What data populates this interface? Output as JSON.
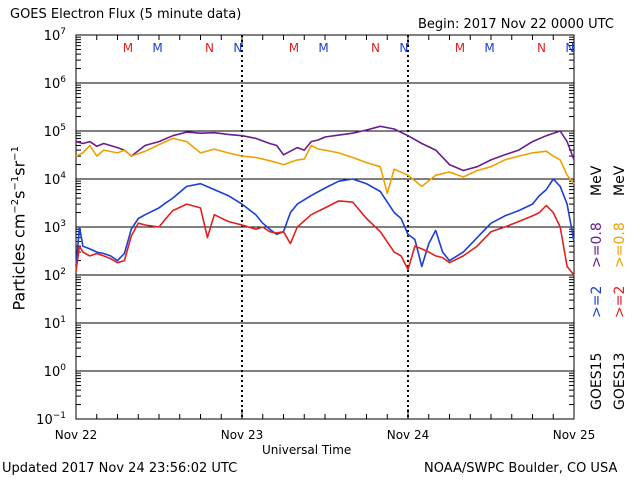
{
  "header": {
    "title": "GOES Electron Flux (5 minute data)",
    "begin": "Begin: 2017 Nov 22 0000 UTC"
  },
  "footer": {
    "updated": "Updated 2017 Nov 24 23:56:02 UTC",
    "credit": "NOAA/SWPC Boulder, CO USA"
  },
  "right_labels": {
    "goes15": "GOES15",
    "goes13": "GOES13",
    "goes15_ge2": ">=2",
    "goes15_ge08": ">=0.8",
    "goes13_ge2": ">=2",
    "goes13_ge08": ">=0.8",
    "mev": "MeV"
  },
  "colors": {
    "goes15_ge2": "#1a3fd6",
    "goes15_ge08": "#6a1d8f",
    "goes13_ge2": "#e31f1f",
    "goes13_ge08": "#f0a000",
    "marker_m": "#e31f1f",
    "marker_n": "#1a3fd6"
  },
  "chart_data": {
    "type": "line",
    "title": "GOES Electron Flux (5 minute data)",
    "xlabel": "Universal Time",
    "ylabel": "Particles cm⁻²s⁻¹sr⁻¹",
    "yscale": "log",
    "ylim": [
      0.1,
      10000000
    ],
    "xlim": [
      0,
      72
    ],
    "x_unit": "hours since 2017 Nov 22 0000 UTC",
    "x_ticks": [
      {
        "x": 0,
        "label": "Nov 22"
      },
      {
        "x": 24,
        "label": "Nov 23"
      },
      {
        "x": 48,
        "label": "Nov 24"
      },
      {
        "x": 72,
        "label": "Nov 25"
      }
    ],
    "y_ticks": [
      {
        "exp": -1
      },
      {
        "exp": 0
      },
      {
        "exp": 1
      },
      {
        "exp": 2
      },
      {
        "exp": 3
      },
      {
        "exp": 4
      },
      {
        "exp": 5
      },
      {
        "exp": 6
      },
      {
        "exp": 7
      }
    ],
    "threshold": 1000,
    "markers": [
      {
        "x": 7.5,
        "label": "M",
        "color": "red"
      },
      {
        "x": 11.8,
        "label": "M",
        "color": "blue"
      },
      {
        "x": 19.3,
        "label": "N",
        "color": "red"
      },
      {
        "x": 23.4,
        "label": "N",
        "color": "blue"
      },
      {
        "x": 31.5,
        "label": "M",
        "color": "red"
      },
      {
        "x": 35.8,
        "label": "M",
        "color": "blue"
      },
      {
        "x": 43.3,
        "label": "N",
        "color": "red"
      },
      {
        "x": 47.4,
        "label": "N",
        "color": "blue"
      },
      {
        "x": 55.5,
        "label": "M",
        "color": "red"
      },
      {
        "x": 59.8,
        "label": "M",
        "color": "blue"
      },
      {
        "x": 67.3,
        "label": "N",
        "color": "red"
      },
      {
        "x": 71.4,
        "label": "N",
        "color": "blue"
      }
    ],
    "series": [
      {
        "name": "GOES15 >=0.8 MeV",
        "color": "#6a1d8f",
        "x": [
          0,
          1,
          2,
          3,
          4,
          6,
          7,
          8,
          10,
          12,
          14,
          16,
          18,
          20,
          22,
          24,
          26,
          28,
          29,
          30,
          32,
          33,
          34,
          35,
          36,
          38,
          40,
          42,
          44,
          46,
          48,
          50,
          52,
          54,
          56,
          58,
          60,
          62,
          64,
          66,
          68,
          70,
          71,
          72
        ],
        "y": [
          60000,
          55000,
          60000,
          48000,
          55000,
          45000,
          40000,
          30000,
          50000,
          60000,
          80000,
          95000,
          90000,
          92000,
          85000,
          80000,
          70000,
          55000,
          50000,
          32000,
          45000,
          40000,
          60000,
          65000,
          75000,
          82000,
          90000,
          105000,
          125000,
          110000,
          80000,
          55000,
          40000,
          20000,
          15000,
          18000,
          25000,
          32000,
          40000,
          60000,
          80000,
          100000,
          60000,
          25000
        ]
      },
      {
        "name": "GOES13 >=0.8 MeV",
        "color": "#f0a000",
        "x": [
          0,
          1,
          2,
          3,
          4,
          6,
          7,
          8,
          10,
          12,
          14,
          16,
          18,
          20,
          22,
          24,
          26,
          28,
          29,
          30,
          32,
          33,
          34,
          35,
          36,
          38,
          40,
          42,
          44,
          45,
          46,
          48,
          50,
          52,
          54,
          56,
          58,
          60,
          62,
          64,
          66,
          68,
          69,
          70,
          71,
          72
        ],
        "y": [
          30000,
          35000,
          50000,
          30000,
          40000,
          35000,
          40000,
          30000,
          38000,
          52000,
          70000,
          60000,
          35000,
          42000,
          35000,
          30000,
          28000,
          24000,
          22000,
          20000,
          25000,
          26000,
          50000,
          42000,
          40000,
          35000,
          28000,
          22000,
          18000,
          5000,
          16000,
          12000,
          7000,
          12000,
          14000,
          11000,
          15000,
          18000,
          25000,
          30000,
          35000,
          38000,
          30000,
          25000,
          12000,
          8000
        ]
      },
      {
        "name": "GOES15 >=2 MeV",
        "color": "#1a3fd6",
        "x": [
          0,
          0.5,
          1,
          2,
          3,
          4,
          5,
          6,
          7,
          8,
          9,
          10,
          12,
          13,
          14,
          16,
          18,
          20,
          22,
          24,
          26,
          27,
          28,
          29,
          30,
          31,
          32,
          34,
          36,
          38,
          40,
          42,
          44,
          46,
          47,
          48,
          49,
          50,
          51,
          52,
          53,
          54,
          56,
          58,
          60,
          62,
          64,
          66,
          67,
          68,
          69,
          70,
          71,
          72
        ],
        "y": [
          150,
          1000,
          400,
          350,
          300,
          280,
          250,
          200,
          280,
          900,
          1500,
          1800,
          2500,
          3200,
          4000,
          7000,
          8000,
          6000,
          4500,
          3000,
          1800,
          1200,
          900,
          700,
          800,
          2000,
          3000,
          4500,
          6500,
          9000,
          10000,
          8000,
          5500,
          2000,
          1500,
          700,
          550,
          150,
          450,
          850,
          300,
          200,
          300,
          600,
          1200,
          1700,
          2200,
          3000,
          4500,
          6000,
          10000,
          7000,
          3000,
          500
        ]
      },
      {
        "name": "GOES13 >=2 MeV",
        "color": "#e31f1f",
        "x": [
          0,
          0.5,
          1,
          2,
          3,
          4,
          5,
          6,
          7,
          8,
          9,
          10,
          12,
          13,
          14,
          16,
          18,
          19,
          20,
          22,
          24,
          26,
          27,
          28,
          29,
          30,
          31,
          32,
          34,
          36,
          38,
          40,
          42,
          44,
          46,
          47,
          48,
          49,
          50,
          51,
          52,
          53,
          54,
          56,
          58,
          60,
          62,
          64,
          66,
          67,
          68,
          69,
          70,
          71,
          72
        ],
        "y": [
          120,
          400,
          300,
          250,
          280,
          250,
          220,
          180,
          200,
          650,
          1200,
          1100,
          1000,
          1500,
          2200,
          3000,
          2500,
          600,
          1800,
          1300,
          1100,
          900,
          1000,
          800,
          750,
          800,
          450,
          1000,
          1800,
          2500,
          3500,
          3300,
          1500,
          800,
          300,
          250,
          130,
          400,
          350,
          300,
          250,
          230,
          180,
          250,
          400,
          800,
          1000,
          1300,
          1700,
          2000,
          2800,
          2000,
          1000,
          150,
          100
        ]
      }
    ]
  }
}
